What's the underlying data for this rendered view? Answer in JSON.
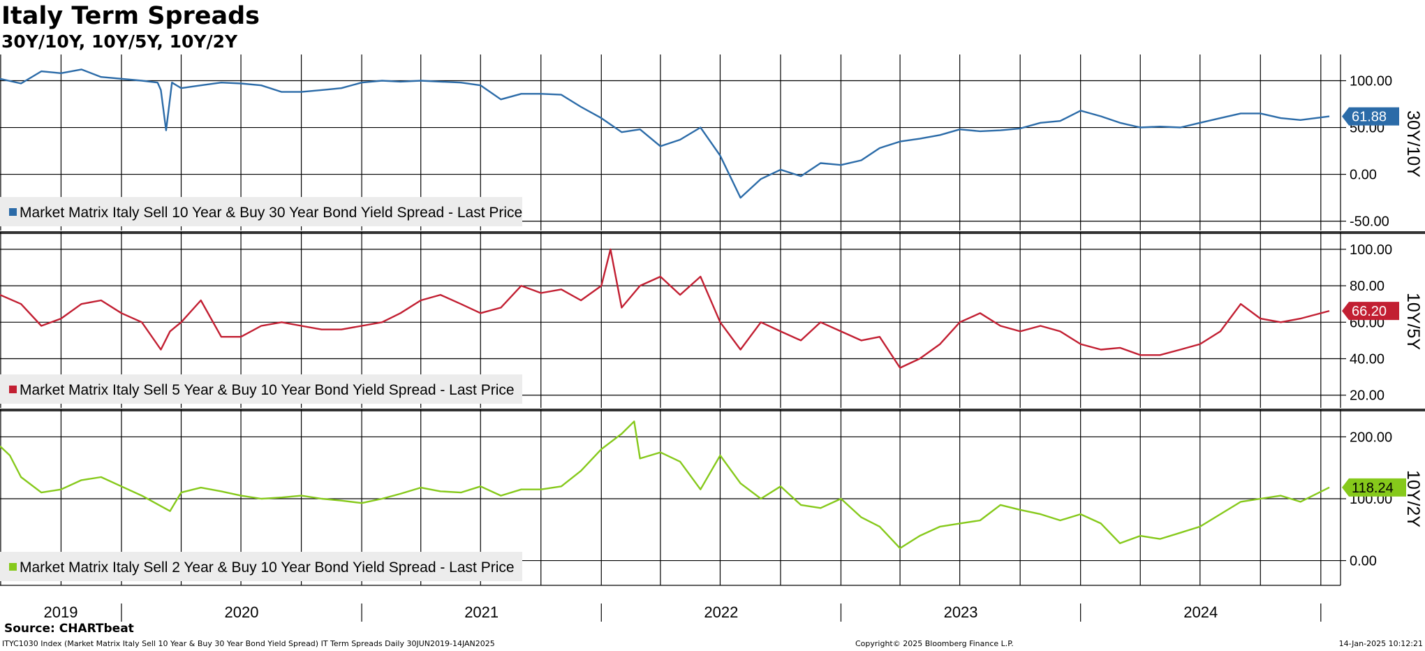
{
  "header": {
    "title": "Italy Term Spreads",
    "subtitle": "30Y/10Y, 10Y/5Y, 10Y/2Y"
  },
  "footer": {
    "source": "Source: CHARTbeat",
    "left": "ITYC1030 Index (Market Matrix Italy Sell 10 Year & Buy 30 Year Bond Yield Spread) IT Term Spreads  Daily 30JUN2019-14JAN2025",
    "center": "Copyright© 2025 Bloomberg Finance L.P.",
    "right": "14-Jan-2025 10:12:21"
  },
  "chart_data": [
    {
      "type": "line",
      "axis_label": "30Y/10Y",
      "legend": "Market Matrix Italy Sell 10 Year & Buy 30 Year Bond Yield Spread - Last Price",
      "color": "#2b6ba8",
      "last_value": "61.88",
      "ylim": [
        -60,
        125
      ],
      "yticks": [
        "100.00",
        "50.00",
        "0.00",
        "-50.00"
      ],
      "ytick_values": [
        100,
        50,
        0,
        -50
      ],
      "grid": true,
      "x": [
        "2019-06-30",
        "2019-08-01",
        "2019-09-01",
        "2019-10-01",
        "2019-11-01",
        "2019-12-01",
        "2020-01-01",
        "2020-02-01",
        "2020-02-25",
        "2020-03-01",
        "2020-03-09",
        "2020-03-18",
        "2020-04-01",
        "2020-05-01",
        "2020-06-01",
        "2020-07-01",
        "2020-08-01",
        "2020-09-01",
        "2020-10-01",
        "2020-11-01",
        "2020-12-01",
        "2021-01-01",
        "2021-02-01",
        "2021-03-01",
        "2021-04-01",
        "2021-05-01",
        "2021-06-01",
        "2021-07-01",
        "2021-08-01",
        "2021-09-01",
        "2021-10-01",
        "2021-11-01",
        "2021-12-01",
        "2022-01-01",
        "2022-02-01",
        "2022-03-01",
        "2022-04-01",
        "2022-05-01",
        "2022-06-01",
        "2022-07-01",
        "2022-08-01",
        "2022-09-01",
        "2022-10-01",
        "2022-11-01",
        "2022-12-01",
        "2023-01-01",
        "2023-02-01",
        "2023-03-01",
        "2023-04-01",
        "2023-05-01",
        "2023-06-01",
        "2023-07-01",
        "2023-08-01",
        "2023-09-01",
        "2023-10-01",
        "2023-11-01",
        "2023-12-01",
        "2024-01-01",
        "2024-02-01",
        "2024-03-01",
        "2024-04-01",
        "2024-05-01",
        "2024-06-01",
        "2024-07-01",
        "2024-08-01",
        "2024-09-01",
        "2024-10-01",
        "2024-11-01",
        "2024-12-01",
        "2025-01-14"
      ],
      "y": [
        102,
        97,
        110,
        108,
        112,
        104,
        102,
        100,
        98,
        90,
        47,
        98,
        92,
        95,
        98,
        97,
        95,
        88,
        88,
        90,
        92,
        98,
        100,
        99,
        100,
        99,
        98,
        95,
        80,
        86,
        86,
        85,
        72,
        60,
        45,
        48,
        30,
        37,
        50,
        20,
        -25,
        -5,
        5,
        -2,
        12,
        10,
        15,
        28,
        35,
        38,
        42,
        48,
        46,
        47,
        49,
        55,
        57,
        68,
        62,
        55,
        50,
        51,
        50,
        55,
        60,
        65,
        65,
        60,
        58,
        61.88
      ]
    },
    {
      "type": "line",
      "axis_label": "10Y/5Y",
      "legend": "Market Matrix Italy Sell 5 Year & Buy 10 Year Bond Yield Spread - Last Price",
      "color": "#c21f32",
      "last_value": "66.20",
      "ylim": [
        13,
        108
      ],
      "yticks": [
        "100.00",
        "80.00",
        "60.00",
        "40.00",
        "20.00"
      ],
      "ytick_values": [
        100,
        80,
        60,
        40,
        20
      ],
      "grid": true,
      "x": [
        "2019-06-30",
        "2019-08-01",
        "2019-09-01",
        "2019-10-01",
        "2019-11-01",
        "2019-12-01",
        "2020-01-01",
        "2020-02-01",
        "2020-03-01",
        "2020-03-15",
        "2020-04-01",
        "2020-05-01",
        "2020-06-01",
        "2020-07-01",
        "2020-08-01",
        "2020-09-01",
        "2020-10-01",
        "2020-11-01",
        "2020-12-01",
        "2021-01-01",
        "2021-02-01",
        "2021-03-01",
        "2021-04-01",
        "2021-05-01",
        "2021-06-01",
        "2021-07-01",
        "2021-08-01",
        "2021-09-01",
        "2021-10-01",
        "2021-11-01",
        "2021-12-01",
        "2022-01-01",
        "2022-01-15",
        "2022-02-01",
        "2022-03-01",
        "2022-04-01",
        "2022-05-01",
        "2022-06-01",
        "2022-07-01",
        "2022-08-01",
        "2022-09-01",
        "2022-10-01",
        "2022-11-01",
        "2022-12-01",
        "2023-01-01",
        "2023-02-01",
        "2023-03-01",
        "2023-04-01",
        "2023-05-01",
        "2023-06-01",
        "2023-07-01",
        "2023-08-01",
        "2023-09-01",
        "2023-10-01",
        "2023-11-01",
        "2023-12-01",
        "2024-01-01",
        "2024-02-01",
        "2024-03-01",
        "2024-04-01",
        "2024-05-01",
        "2024-06-01",
        "2024-07-01",
        "2024-08-01",
        "2024-09-01",
        "2024-10-01",
        "2024-11-01",
        "2024-12-01",
        "2025-01-14"
      ],
      "y": [
        75,
        70,
        58,
        62,
        70,
        72,
        65,
        60,
        45,
        55,
        60,
        72,
        52,
        52,
        58,
        60,
        58,
        56,
        56,
        58,
        60,
        65,
        72,
        75,
        70,
        65,
        68,
        80,
        76,
        78,
        72,
        80,
        100,
        68,
        80,
        85,
        75,
        85,
        60,
        45,
        60,
        55,
        50,
        60,
        55,
        50,
        52,
        35,
        40,
        48,
        60,
        65,
        58,
        55,
        58,
        55,
        48,
        45,
        46,
        42,
        42,
        45,
        48,
        55,
        70,
        62,
        60,
        62,
        66.2
      ]
    },
    {
      "type": "line",
      "axis_label": "10Y/2Y",
      "legend": "Market Matrix Italy Sell 2 Year & Buy 10 Year Bond Yield Spread - Last Price",
      "color": "#86c91b",
      "last_value": "118.24",
      "ylim": [
        -40,
        240
      ],
      "yticks": [
        "200.00",
        "100.00",
        "0.00"
      ],
      "ytick_values": [
        200,
        100,
        0
      ],
      "grid": true,
      "x": [
        "2019-06-30",
        "2019-07-15",
        "2019-08-01",
        "2019-09-01",
        "2019-10-01",
        "2019-11-01",
        "2019-12-01",
        "2020-01-01",
        "2020-02-01",
        "2020-03-01",
        "2020-03-15",
        "2020-04-01",
        "2020-05-01",
        "2020-06-01",
        "2020-07-01",
        "2020-08-01",
        "2020-09-01",
        "2020-10-01",
        "2020-11-01",
        "2020-12-01",
        "2021-01-01",
        "2021-02-01",
        "2021-03-01",
        "2021-04-01",
        "2021-05-01",
        "2021-06-01",
        "2021-07-01",
        "2021-08-01",
        "2021-09-01",
        "2021-10-01",
        "2021-11-01",
        "2021-12-01",
        "2022-01-01",
        "2022-02-01",
        "2022-02-20",
        "2022-03-01",
        "2022-04-01",
        "2022-05-01",
        "2022-06-01",
        "2022-07-01",
        "2022-08-01",
        "2022-09-01",
        "2022-10-01",
        "2022-11-01",
        "2022-12-01",
        "2023-01-01",
        "2023-02-01",
        "2023-03-01",
        "2023-04-01",
        "2023-05-01",
        "2023-06-01",
        "2023-07-01",
        "2023-08-01",
        "2023-09-01",
        "2023-10-01",
        "2023-11-01",
        "2023-12-01",
        "2024-01-01",
        "2024-02-01",
        "2024-03-01",
        "2024-04-01",
        "2024-05-01",
        "2024-06-01",
        "2024-07-01",
        "2024-08-01",
        "2024-09-01",
        "2024-10-01",
        "2024-11-01",
        "2024-12-01",
        "2025-01-14"
      ],
      "y": [
        185,
        170,
        135,
        110,
        115,
        130,
        135,
        120,
        105,
        88,
        80,
        110,
        118,
        112,
        105,
        100,
        102,
        105,
        100,
        97,
        93,
        100,
        108,
        118,
        112,
        110,
        120,
        105,
        115,
        115,
        120,
        145,
        180,
        205,
        225,
        165,
        175,
        160,
        115,
        170,
        125,
        100,
        120,
        90,
        85,
        100,
        70,
        55,
        20,
        40,
        55,
        60,
        65,
        90,
        82,
        75,
        65,
        75,
        60,
        28,
        40,
        35,
        45,
        55,
        75,
        95,
        100,
        105,
        95,
        118.24
      ]
    }
  ],
  "x_axis": {
    "years": [
      "2019",
      "2020",
      "2021",
      "2022",
      "2023",
      "2024"
    ],
    "range": [
      "2019-06-30",
      "2025-01-31"
    ]
  }
}
